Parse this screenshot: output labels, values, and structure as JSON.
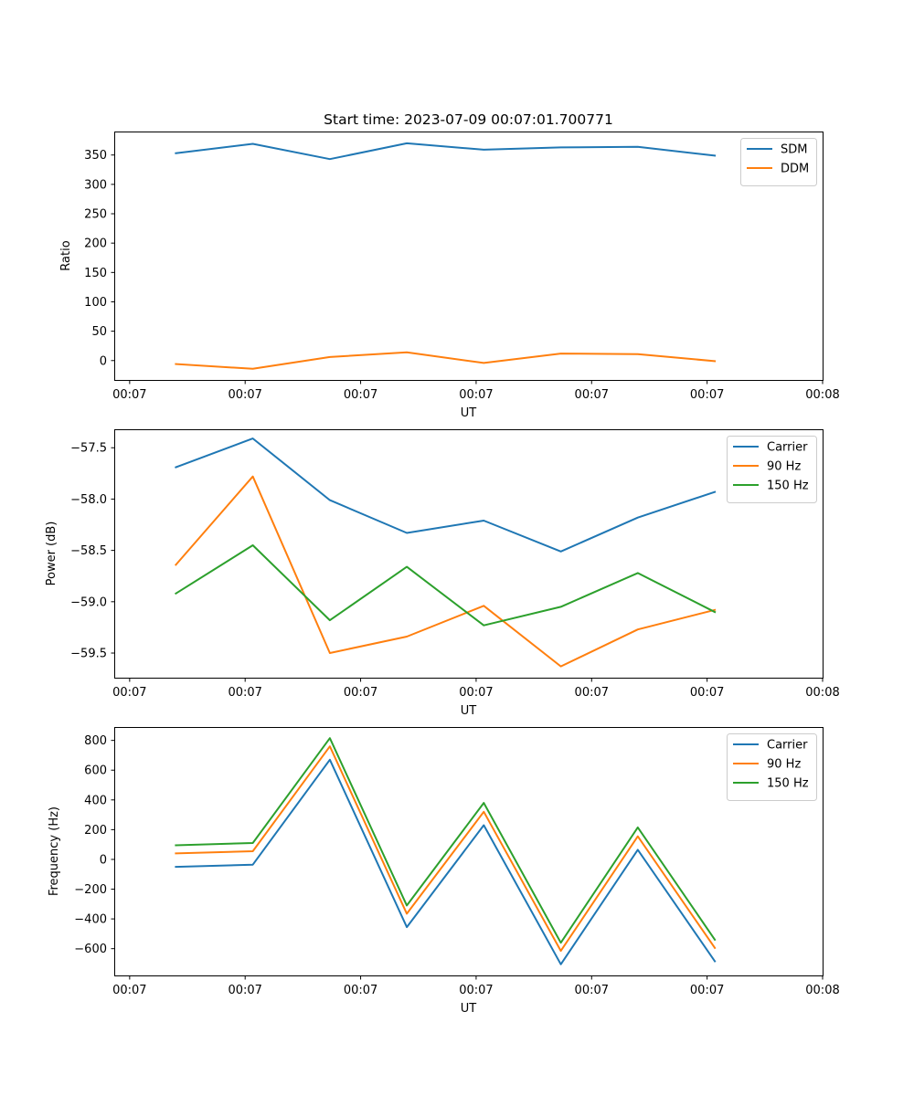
{
  "figure_title": "Start time: 2023-07-09 00:07:01.700771",
  "chart_data": [
    {
      "type": "line",
      "title": "Start time: 2023-07-09 00:07:01.700771",
      "xlabel": "UT",
      "ylabel": "Ratio",
      "x": [
        1,
        2,
        3,
        4,
        5,
        6,
        7,
        8
      ],
      "xlim": [
        0.2,
        9.4
      ],
      "x_ticks": [
        0.4,
        1.9,
        3.4,
        4.9,
        6.4,
        7.9,
        9.4
      ],
      "x_tick_labels": [
        "00:07",
        "00:07",
        "00:07",
        "00:07",
        "00:07",
        "00:07",
        "00:08"
      ],
      "ylim": [
        -33,
        390
      ],
      "y_ticks": [
        0,
        50,
        100,
        150,
        200,
        250,
        300,
        350
      ],
      "y_tick_labels": [
        "0",
        "50",
        "100",
        "150",
        "200",
        "250",
        "300",
        "350"
      ],
      "legend_position": "top-right",
      "series": [
        {
          "name": "SDM",
          "color": "#1f77b4",
          "values": [
            353,
            369,
            343,
            370,
            359,
            363,
            364,
            349
          ]
        },
        {
          "name": "DDM",
          "color": "#ff7f0e",
          "values": [
            -6,
            -14,
            6,
            14,
            -4,
            12,
            11,
            -1
          ]
        }
      ]
    },
    {
      "type": "line",
      "title": "",
      "xlabel": "UT",
      "ylabel": "Power (dB)",
      "x": [
        1,
        2,
        3,
        4,
        5,
        6,
        7,
        8
      ],
      "xlim": [
        0.2,
        9.4
      ],
      "x_ticks": [
        0.4,
        1.9,
        3.4,
        4.9,
        6.4,
        7.9,
        9.4
      ],
      "x_tick_labels": [
        "00:07",
        "00:07",
        "00:07",
        "00:07",
        "00:07",
        "00:07",
        "00:08"
      ],
      "ylim": [
        -59.74,
        -57.32
      ],
      "y_ticks": [
        -59.5,
        -59.0,
        -58.5,
        -58.0,
        -57.5
      ],
      "y_tick_labels": [
        "−59.5",
        "−59.0",
        "−58.5",
        "−58.0",
        "−57.5"
      ],
      "legend_position": "top-right",
      "series": [
        {
          "name": "Carrier",
          "color": "#1f77b4",
          "values": [
            -57.69,
            -57.41,
            -58.01,
            -58.33,
            -58.21,
            -58.51,
            -58.18,
            -57.93
          ]
        },
        {
          "name": "90 Hz",
          "color": "#ff7f0e",
          "values": [
            -58.64,
            -57.78,
            -59.5,
            -59.34,
            -59.04,
            -59.63,
            -59.27,
            -59.08
          ]
        },
        {
          "name": "150 Hz",
          "color": "#2ca02c",
          "values": [
            -58.92,
            -58.45,
            -59.18,
            -58.66,
            -59.23,
            -59.05,
            -58.72,
            -59.1
          ]
        }
      ]
    },
    {
      "type": "line",
      "title": "",
      "xlabel": "UT",
      "ylabel": "Frequency (Hz)",
      "x": [
        1,
        2,
        3,
        4,
        5,
        6,
        7,
        8
      ],
      "xlim": [
        0.2,
        9.4
      ],
      "x_ticks": [
        0.4,
        1.9,
        3.4,
        4.9,
        6.4,
        7.9,
        9.4
      ],
      "x_tick_labels": [
        "00:07",
        "00:07",
        "00:07",
        "00:07",
        "00:07",
        "00:07",
        "00:08"
      ],
      "ylim": [
        -780,
        890
      ],
      "y_ticks": [
        -600,
        -400,
        -200,
        0,
        200,
        400,
        600,
        800
      ],
      "y_tick_labels": [
        "−600",
        "−400",
        "−200",
        "0",
        "200",
        "400",
        "600",
        "800"
      ],
      "legend_position": "top-right",
      "series": [
        {
          "name": "Carrier",
          "color": "#1f77b4",
          "values": [
            -50,
            -35,
            670,
            -455,
            230,
            -705,
            65,
            -685
          ]
        },
        {
          "name": "90 Hz",
          "color": "#ff7f0e",
          "values": [
            40,
            55,
            760,
            -365,
            320,
            -615,
            155,
            -595
          ]
        },
        {
          "name": "150 Hz",
          "color": "#2ca02c",
          "values": [
            95,
            110,
            815,
            -310,
            380,
            -560,
            215,
            -540
          ]
        }
      ]
    }
  ]
}
